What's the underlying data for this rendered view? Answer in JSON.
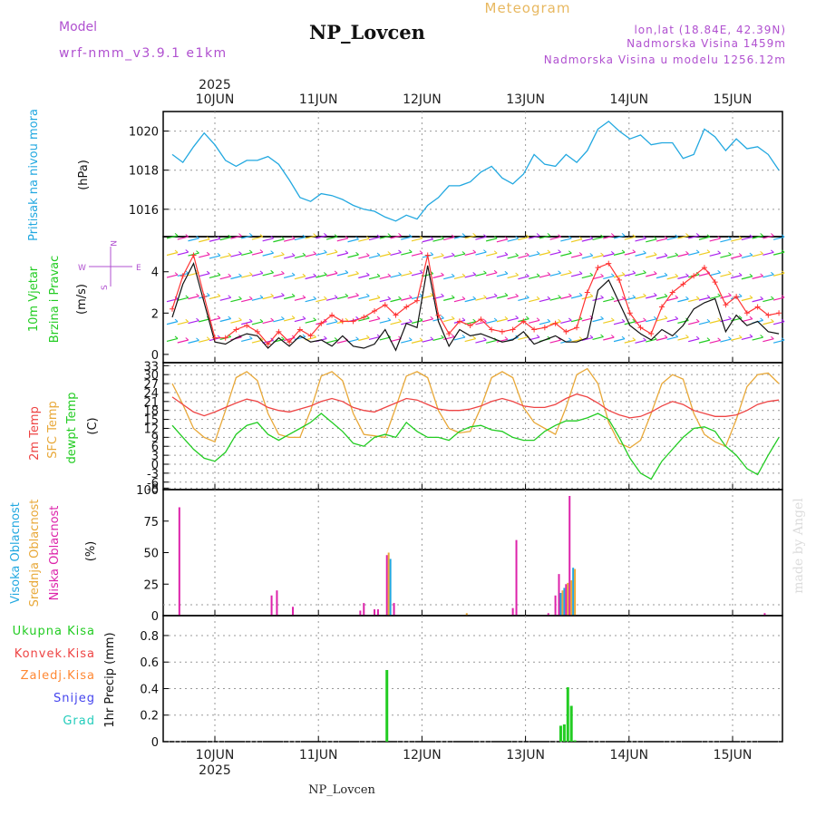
{
  "header": {
    "model_label": "Model",
    "model_name": "wrf-nmm_v3.9.1 e1km",
    "station": "NP_Lovcen",
    "meteogram": "Meteogram",
    "lonlat": "lon,lat (18.84E, 42.39N)",
    "altitude": "Nadmorska Visina 1459m",
    "model_altitude": "Nadmorska Visina u modelu 1256.12m",
    "footer_station": "NP_Lovcen",
    "watermark": "made by Angel",
    "year": "2025"
  },
  "dates": [
    "10JUN",
    "11JUN",
    "12JUN",
    "13JUN",
    "14JUN",
    "15JUN"
  ],
  "colors": {
    "pressure": "#22a8e0",
    "wind": "#22cc22",
    "gust": "#ff3333",
    "temp2m": "#ee4444",
    "sfc": "#e8a838",
    "dewpt": "#22cc22",
    "high_cloud": "#22a8e0",
    "mid_cloud": "#e8a838",
    "low_cloud": "#dd22aa",
    "precip_total": "#22cc22",
    "precip_conv": "#ee4444",
    "precip_frozen": "#ff8833",
    "snow": "#4444ee",
    "hail": "#22ccbb"
  },
  "panels": {
    "pressure": {
      "label": "Pritisak na nivou mora",
      "unit": "(hPa)",
      "ticks": [
        "1016",
        "1018",
        "1020"
      ]
    },
    "wind": {
      "label1": "10m Vjetar",
      "label2": "Brzina i Pravac",
      "unit": "(m/s)",
      "ticks": [
        "0",
        "2",
        "4"
      ],
      "compass_n": "N",
      "compass_w": "W",
      "compass_e": "E",
      "compass_s": "S"
    },
    "temp": {
      "label1": "2m Temp",
      "label2": "SFC Temp",
      "label3": "dewpt Temp",
      "unit": "(C)",
      "ticks": [
        "-8",
        "-6",
        "-3",
        "0",
        "3",
        "6",
        "9",
        "12",
        "15",
        "18",
        "21",
        "24",
        "27",
        "30",
        "33"
      ]
    },
    "cloud": {
      "label1": "Visoka Oblacnost",
      "label2": "Srednja Oblacnost",
      "label3": "Niska Oblacnost",
      "unit": "(%)",
      "ticks": [
        "0",
        "25",
        "50",
        "75",
        "100"
      ]
    },
    "precip": {
      "label1": "Ukupna Kisa",
      "label2": "Konvek.Kisa",
      "label3": "Zaledj.Kisa",
      "label4": "Snijeg",
      "label5": "Grad",
      "unit": "1hr Precip (mm)",
      "ticks": [
        "0",
        "0.2",
        "0.4",
        "0.6",
        "0.8"
      ]
    }
  },
  "chart_data": [
    {
      "type": "line",
      "name": "pressure",
      "ylabel": "Pritisak na nivou mora (hPa)",
      "ylim": [
        1014.6,
        1021.0
      ],
      "x": [
        0,
        3,
        6,
        9,
        12,
        15,
        18,
        21,
        24,
        27,
        30,
        33,
        36,
        39,
        42,
        45,
        48,
        51,
        54,
        57,
        60,
        63,
        66,
        69,
        72,
        75,
        78,
        81,
        84,
        87,
        90,
        93,
        96,
        99,
        102,
        105,
        108,
        111,
        114,
        117,
        120,
        123,
        126,
        129,
        132,
        135,
        138,
        141,
        144,
        147,
        150,
        153,
        156,
        159,
        162,
        165,
        168,
        171
      ],
      "values": [
        1018.8,
        1018.4,
        1019.2,
        1019.9,
        1019.3,
        1018.5,
        1018.2,
        1018.5,
        1018.5,
        1018.7,
        1018.3,
        1017.5,
        1016.6,
        1016.4,
        1016.8,
        1016.7,
        1016.5,
        1016.2,
        1016.0,
        1015.9,
        1015.6,
        1015.4,
        1015.7,
        1015.5,
        1016.2,
        1016.6,
        1017.2,
        1017.2,
        1017.4,
        1017.9,
        1018.2,
        1017.6,
        1017.3,
        1017.8,
        1018.8,
        1018.3,
        1018.2,
        1018.8,
        1018.4,
        1019.0,
        1020.1,
        1020.5,
        1020.0,
        1019.6,
        1019.8,
        1019.3,
        1019.4,
        1019.4,
        1018.6,
        1018.8,
        1020.1,
        1019.7,
        1019.0,
        1019.6,
        1019.1,
        1019.2,
        1018.8,
        1018.0
      ]
    },
    {
      "type": "line",
      "name": "wind",
      "ylabel": "10m Vjetar Brzina i Pravac (m/s)",
      "ylim": [
        -0.4,
        5.7
      ],
      "x": [
        0,
        3,
        6,
        9,
        12,
        15,
        18,
        21,
        24,
        27,
        30,
        33,
        36,
        39,
        42,
        45,
        48,
        51,
        54,
        57,
        60,
        63,
        66,
        69,
        72,
        75,
        78,
        81,
        84,
        87,
        90,
        93,
        96,
        99,
        102,
        105,
        108,
        111,
        114,
        117,
        120,
        123,
        126,
        129,
        132,
        135,
        138,
        141,
        144,
        147,
        150,
        153,
        156,
        159,
        162,
        165,
        168,
        171
      ],
      "series": [
        {
          "name": "speed",
          "values": [
            1.8,
            3.4,
            4.4,
            2.5,
            0.6,
            0.5,
            0.8,
            1.0,
            0.9,
            0.3,
            0.8,
            0.4,
            0.9,
            0.6,
            0.7,
            0.4,
            0.9,
            0.4,
            0.3,
            0.5,
            1.2,
            0.2,
            1.5,
            1.3,
            4.3,
            1.6,
            0.4,
            1.2,
            0.9,
            1.0,
            0.8,
            0.6,
            0.7,
            1.1,
            0.5,
            0.7,
            0.9,
            0.6,
            0.6,
            0.8,
            3.1,
            3.6,
            2.5,
            1.4,
            1.0,
            0.7,
            1.2,
            0.9,
            1.4,
            2.2,
            2.5,
            2.7,
            1.1,
            1.9,
            1.4,
            1.6,
            1.1,
            1.0
          ]
        },
        {
          "name": "gust",
          "values": [
            2.2,
            3.8,
            4.8,
            2.8,
            0.8,
            0.8,
            1.2,
            1.4,
            1.1,
            0.5,
            1.1,
            0.6,
            1.2,
            0.9,
            1.5,
            1.9,
            1.6,
            1.6,
            1.8,
            2.1,
            2.4,
            1.9,
            2.3,
            2.6,
            4.8,
            1.9,
            1.0,
            1.6,
            1.4,
            1.7,
            1.2,
            1.1,
            1.2,
            1.6,
            1.2,
            1.3,
            1.5,
            1.1,
            1.3,
            3.0,
            4.2,
            4.4,
            3.6,
            2.0,
            1.3,
            1.0,
            2.3,
            3.0,
            3.4,
            3.8,
            4.2,
            3.5,
            2.4,
            2.8,
            2.0,
            2.3,
            1.9,
            2.0
          ]
        }
      ]
    },
    {
      "type": "line",
      "name": "temperature",
      "ylabel": "(C)",
      "ylim": [
        -8.5,
        34
      ],
      "x": [
        0,
        3,
        6,
        9,
        12,
        15,
        18,
        21,
        24,
        27,
        30,
        33,
        36,
        39,
        42,
        45,
        48,
        51,
        54,
        57,
        60,
        63,
        66,
        69,
        72,
        75,
        78,
        81,
        84,
        87,
        90,
        93,
        96,
        99,
        102,
        105,
        108,
        111,
        114,
        117,
        120,
        123,
        126,
        129,
        132,
        135,
        138,
        141,
        144,
        147,
        150,
        153,
        156,
        159,
        162,
        165,
        168,
        171
      ],
      "series": [
        {
          "name": "2m Temp",
          "values": [
            22.5,
            20.0,
            17.5,
            16.2,
            17.5,
            19.0,
            20.5,
            21.8,
            21.0,
            19.0,
            18.0,
            17.5,
            18.5,
            19.5,
            21.0,
            22.0,
            21.0,
            19.0,
            18.0,
            17.5,
            19.0,
            20.5,
            22.0,
            21.5,
            20.0,
            18.5,
            18.0,
            18.0,
            18.5,
            19.5,
            21.0,
            22.0,
            21.0,
            19.5,
            19.0,
            19.0,
            20.0,
            22.0,
            23.5,
            22.5,
            20.5,
            18.0,
            16.5,
            15.5,
            16.0,
            17.5,
            19.5,
            21.0,
            20.0,
            18.0,
            17.0,
            16.0,
            16.0,
            16.5,
            18.0,
            20.0,
            21.0,
            21.5
          ]
        },
        {
          "name": "SFC Temp",
          "values": [
            27.0,
            20.0,
            12.0,
            9.0,
            7.5,
            18.0,
            29.0,
            31.0,
            28.0,
            17.0,
            10.0,
            9.0,
            9.0,
            18.0,
            29.5,
            31.0,
            28.0,
            17.0,
            10.0,
            9.5,
            9.0,
            19.0,
            29.5,
            31.0,
            29.0,
            18.0,
            12.0,
            10.5,
            11.0,
            19.0,
            29.0,
            31.0,
            29.0,
            19.0,
            14.0,
            12.0,
            10.0,
            19.0,
            30.0,
            32.0,
            27.0,
            14.0,
            7.0,
            5.5,
            8.0,
            17.0,
            27.0,
            30.0,
            28.5,
            17.0,
            10.0,
            7.5,
            6.0,
            15.0,
            26.0,
            30.0,
            30.5,
            27.0
          ]
        },
        {
          "name": "dewpt Temp",
          "values": [
            13.0,
            9.0,
            5.0,
            2.0,
            1.0,
            4.0,
            10.0,
            13.0,
            14.0,
            10.0,
            8.0,
            10.0,
            12.0,
            14.0,
            17.0,
            14.0,
            11.0,
            7.0,
            6.0,
            9.0,
            10.0,
            9.0,
            14.0,
            11.0,
            9.0,
            9.0,
            8.0,
            11.0,
            12.5,
            13.0,
            11.5,
            11.0,
            9.0,
            8.0,
            8.0,
            11.0,
            13.0,
            14.5,
            14.5,
            15.5,
            17.0,
            15.0,
            9.0,
            2.0,
            -3.0,
            -5.0,
            1.0,
            5.0,
            9.0,
            12.0,
            12.5,
            11.0,
            6.0,
            3.0,
            -1.5,
            -3.5,
            3.0,
            9.0
          ]
        }
      ]
    },
    {
      "type": "bar",
      "name": "cloud",
      "ylabel": "(%)",
      "ylim": [
        0,
        100
      ],
      "bars": [
        {
          "x": 2,
          "series": "low",
          "value": 86
        },
        {
          "x": 28,
          "series": "low",
          "value": 16
        },
        {
          "x": 29.5,
          "series": "low",
          "value": 20
        },
        {
          "x": 34,
          "series": "low",
          "value": 7
        },
        {
          "x": 53,
          "series": "low",
          "value": 4
        },
        {
          "x": 54,
          "series": "low",
          "value": 10
        },
        {
          "x": 57,
          "series": "low",
          "value": 5
        },
        {
          "x": 58,
          "series": "low",
          "value": 5
        },
        {
          "x": 60.5,
          "series": "low",
          "value": 48
        },
        {
          "x": 61,
          "series": "mid",
          "value": 50
        },
        {
          "x": 61.5,
          "series": "high",
          "value": 45
        },
        {
          "x": 62.5,
          "series": "low",
          "value": 10
        },
        {
          "x": 83,
          "series": "mid",
          "value": 2
        },
        {
          "x": 96,
          "series": "low",
          "value": 6
        },
        {
          "x": 97,
          "series": "low",
          "value": 60
        },
        {
          "x": 106,
          "series": "low",
          "value": 2
        },
        {
          "x": 108,
          "series": "low",
          "value": 16
        },
        {
          "x": 109,
          "series": "low",
          "value": 33
        },
        {
          "x": 109.5,
          "series": "high",
          "value": 18
        },
        {
          "x": 110,
          "series": "mid",
          "value": 20
        },
        {
          "x": 110.5,
          "series": "high",
          "value": 22
        },
        {
          "x": 111,
          "series": "low",
          "value": 25
        },
        {
          "x": 111.5,
          "series": "mid",
          "value": 26
        },
        {
          "x": 112,
          "series": "low",
          "value": 95
        },
        {
          "x": 112.5,
          "series": "mid",
          "value": 28
        },
        {
          "x": 113,
          "series": "high",
          "value": 38
        },
        {
          "x": 113.5,
          "series": "mid",
          "value": 37
        },
        {
          "x": 167,
          "series": "low",
          "value": 2
        }
      ]
    },
    {
      "type": "bar",
      "name": "precipitation",
      "ylabel": "1hr Precip (mm)",
      "ylim": [
        0,
        0.95
      ],
      "bars": [
        {
          "x": 60.5,
          "series": "total",
          "value": 0.54
        },
        {
          "x": 109.5,
          "series": "total",
          "value": 0.12
        },
        {
          "x": 110.5,
          "series": "total",
          "value": 0.13
        },
        {
          "x": 111.5,
          "series": "total",
          "value": 0.41
        },
        {
          "x": 112.5,
          "series": "total",
          "value": 0.27
        },
        {
          "x": 113.5,
          "series": "total",
          "value": 0.01
        }
      ]
    }
  ]
}
